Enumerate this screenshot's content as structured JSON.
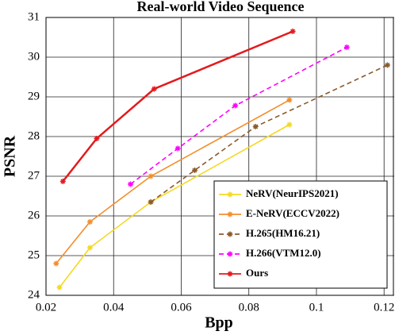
{
  "chart_data": {
    "type": "line",
    "title": "Real-world Video Sequence",
    "x_label": "Bpp",
    "y_label": "PSNR",
    "xlim": [
      0.02,
      0.123
    ],
    "xticks": [
      0.02,
      0.04,
      0.06,
      0.08,
      0.1,
      0.12
    ],
    "ylim": [
      24,
      31
    ],
    "yticks": [
      24,
      25,
      26,
      27,
      28,
      29,
      30,
      31
    ],
    "grid": true,
    "legend_position": "lower right",
    "series": [
      {
        "name": "NeRV(NeurIPS2021)",
        "color": "#f5d922",
        "linestyle": "solid",
        "x": [
          0.024,
          0.033,
          0.051,
          0.092
        ],
        "values": [
          24.2,
          25.2,
          26.35,
          28.3
        ]
      },
      {
        "name": "E-NeRV(ECCV2022)",
        "color": "#f28e2b",
        "linestyle": "solid",
        "x": [
          0.023,
          0.033,
          0.051,
          0.092
        ],
        "values": [
          24.8,
          25.85,
          27.0,
          28.92
        ]
      },
      {
        "name": "H.265(HM16.21)",
        "color": "#8b5a2b",
        "linestyle": "dashed",
        "x": [
          0.051,
          0.064,
          0.082,
          0.121
        ],
        "values": [
          26.35,
          27.15,
          28.25,
          29.8
        ]
      },
      {
        "name": "H.266(VTM12.0)",
        "color": "#ff00ff",
        "linestyle": "dashed",
        "x": [
          0.045,
          0.059,
          0.076,
          0.109
        ],
        "values": [
          26.8,
          27.7,
          28.78,
          30.25
        ]
      },
      {
        "name": "Ours",
        "color": "#e41a1c",
        "linestyle": "solid",
        "x": [
          0.025,
          0.035,
          0.052,
          0.093
        ],
        "values": [
          26.87,
          27.95,
          29.2,
          30.65
        ]
      }
    ]
  }
}
